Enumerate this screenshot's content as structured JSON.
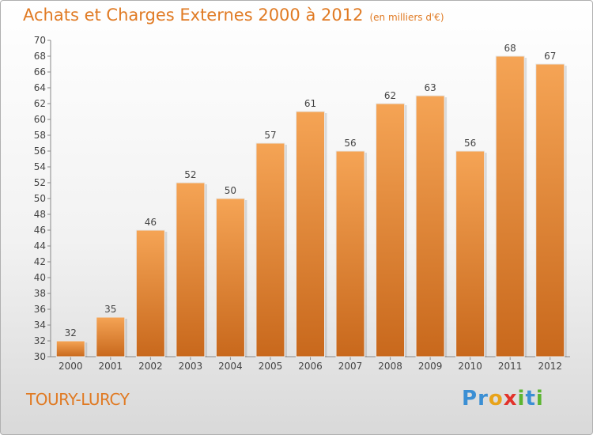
{
  "title": "Achats et Charges Externes 2000 à 2012",
  "subtitle": "(en milliers d'€)",
  "commune": "TOURY-LURCY",
  "logo": {
    "letters": [
      "P",
      "r",
      "o",
      "x",
      "i",
      "t",
      "i"
    ],
    "colors": [
      "#3b8fd4",
      "#3b8fd4",
      "#e8a31a",
      "#e2322a",
      "#5cb531",
      "#3b8fd4",
      "#5cb531"
    ]
  },
  "colors": {
    "bar": "#f0a050",
    "bar_dark": "#c8681c",
    "title": "#e07a23"
  },
  "chart_data": {
    "type": "bar",
    "categories": [
      "2000",
      "2001",
      "2002",
      "2003",
      "2004",
      "2005",
      "2006",
      "2007",
      "2008",
      "2009",
      "2010",
      "2011",
      "2012"
    ],
    "values": [
      32,
      35,
      46,
      52,
      50,
      57,
      61,
      56,
      62,
      63,
      56,
      68,
      67
    ],
    "ylim": [
      30,
      70
    ],
    "yticks": [
      30,
      32,
      34,
      36,
      38,
      40,
      42,
      44,
      46,
      48,
      50,
      52,
      54,
      56,
      58,
      60,
      62,
      64,
      66,
      68,
      70
    ],
    "grid": false,
    "title": "Achats et Charges Externes 2000 à 2012",
    "subtitle": "(en milliers d'€)"
  }
}
